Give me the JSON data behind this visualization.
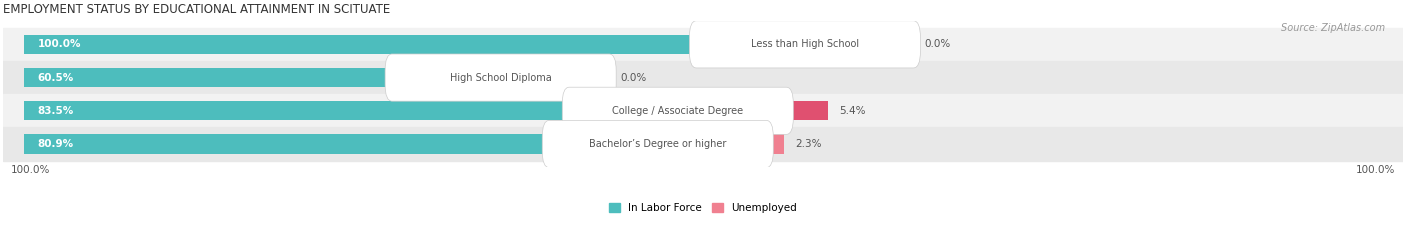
{
  "title": "EMPLOYMENT STATUS BY EDUCATIONAL ATTAINMENT IN SCITUATE",
  "source": "Source: ZipAtlas.com",
  "categories": [
    "Less than High School",
    "High School Diploma",
    "College / Associate Degree",
    "Bachelor’s Degree or higher"
  ],
  "labor_force": [
    100.0,
    60.5,
    83.5,
    80.9
  ],
  "unemployed": [
    0.0,
    0.0,
    5.4,
    2.3
  ],
  "labor_force_color": "#4dbdbd",
  "unemployed_color": "#f08090",
  "unemployed_color_strong": "#e05070",
  "row_bg_even": "#f2f2f2",
  "row_bg_odd": "#e8e8e8",
  "label_text_color": "#555555",
  "axis_label_left": "100.0%",
  "axis_label_right": "100.0%",
  "legend_labor": "In Labor Force",
  "legend_unemployed": "Unemployed",
  "title_fontsize": 8.5,
  "bar_label_fontsize": 7.5,
  "category_fontsize": 7,
  "axis_fontsize": 7.5,
  "source_fontsize": 7,
  "total_width": 100.0,
  "xmin": 0,
  "xmax": 100
}
